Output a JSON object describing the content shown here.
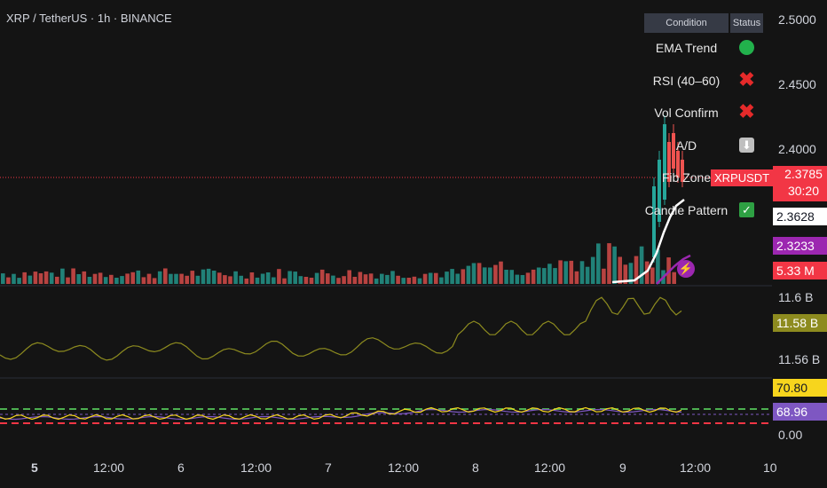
{
  "symbol_line": "XRP / TetherUS · 1h · BINANCE",
  "status_table": {
    "header_condition": "Condition",
    "header_status": "Status",
    "rows": [
      {
        "label": "EMA Trend",
        "status": "green-dot-icon"
      },
      {
        "label": "RSI (40–60)",
        "status": "red-x-icon"
      },
      {
        "label": "Vol Confirm",
        "status": "red-x-icon"
      },
      {
        "label": "A/D",
        "status": "down-arrow-icon"
      },
      {
        "label": "Fib Zone",
        "status": "none"
      },
      {
        "label": "Candle Pattern",
        "status": "checkmark-icon"
      }
    ]
  },
  "price_axis": {
    "ticks": [
      "2.5000",
      "2.4500",
      "2.4000"
    ],
    "symbol_tag": "XRPUSDT",
    "last_price": "2.3785",
    "countdown": "30:20",
    "ema_value": "2.3628",
    "vwap_value": "2.3233",
    "volume_value": "5.33 M"
  },
  "obv_axis": {
    "ticks": [
      "11.6 B",
      "11.56 B"
    ],
    "current": "11.58 B"
  },
  "rsi_axis": {
    "value_1": "70.80",
    "value_2": "68.96",
    "tick": "0.00"
  },
  "time_axis": [
    "5",
    "12:00",
    "6",
    "12:00",
    "7",
    "12:00",
    "8",
    "12:00",
    "9",
    "12:00",
    "10"
  ],
  "colors": {
    "up": "#26a69a",
    "down": "#ef5350",
    "obv_line": "#8d8b1f",
    "rsi_line": "#f7d51d",
    "rsi_ma": "#7e57c2",
    "upper_band": "#4caf50",
    "lower_band": "#f23645"
  }
}
